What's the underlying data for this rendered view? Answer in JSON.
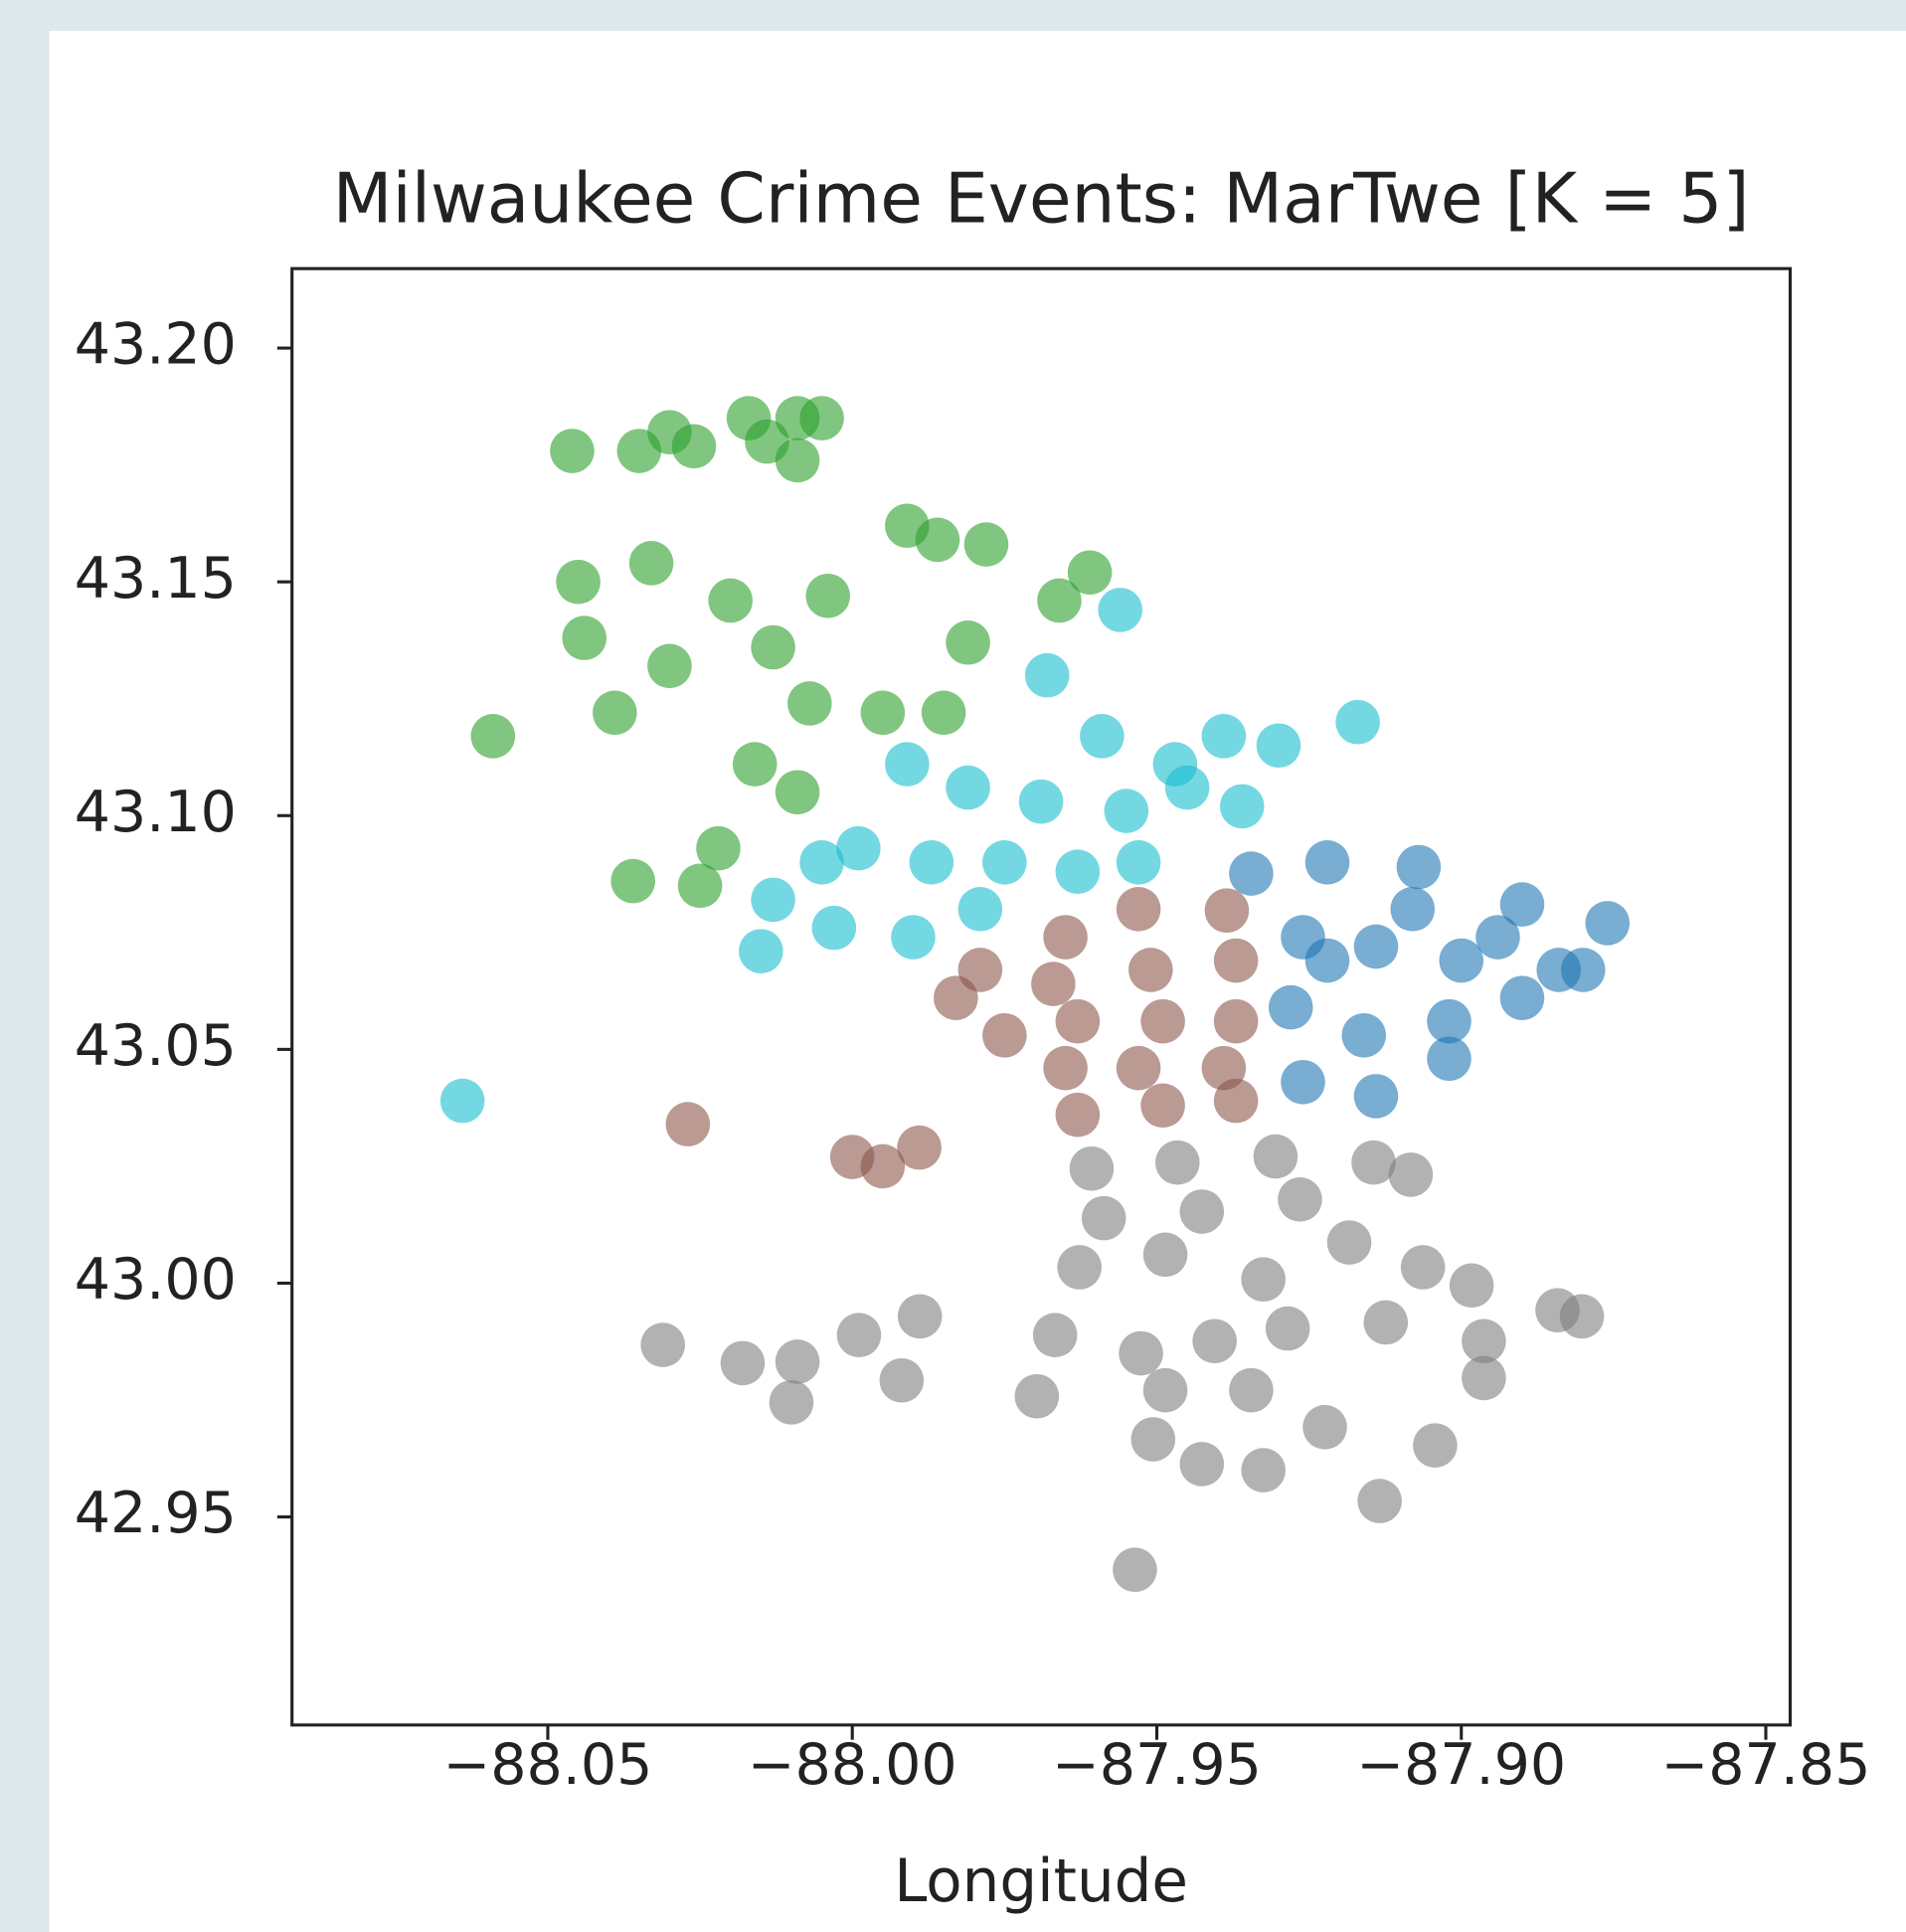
{
  "chart_data": {
    "type": "scatter",
    "title": "Milwaukee Crime Events: MarTwe [K = 5]",
    "xlabel": "Longitude",
    "xlim": [
      -88.092,
      -87.846
    ],
    "ylim": [
      42.9055,
      43.217
    ],
    "xticks": [
      {
        "value": -88.05,
        "label": "−88.05"
      },
      {
        "value": -88.0,
        "label": "−88.00"
      },
      {
        "value": -87.95,
        "label": "−87.95"
      },
      {
        "value": -87.9,
        "label": "−87.90"
      },
      {
        "value": -87.85,
        "label": "−87.85"
      }
    ],
    "yticks": [
      {
        "value": 42.95,
        "label": "42.95"
      },
      {
        "value": 43.0,
        "label": "43.00"
      },
      {
        "value": 43.05,
        "label": "43.05"
      },
      {
        "value": 43.1,
        "label": "43.10"
      },
      {
        "value": 43.15,
        "label": "43.15"
      },
      {
        "value": 43.2,
        "label": "43.20"
      }
    ],
    "series": [
      {
        "color": "#2ca02c",
        "x": [
          -88.046,
          -88.035,
          -88.03,
          -88.026,
          -88.017,
          -88.014,
          -88.009,
          -88.005,
          -88.009,
          -87.991,
          -87.986,
          -87.978,
          -88.033,
          -88.045,
          -88.02,
          -88.004,
          -88.044,
          -88.03,
          -88.013,
          -87.981,
          -87.966,
          -87.961,
          -88.059,
          -88.039,
          -88.016,
          -88.007,
          -87.995,
          -88.022,
          -88.036,
          -88.025,
          -87.985,
          -88.009
        ],
        "y": [
          43.178,
          43.178,
          43.182,
          43.179,
          43.185,
          43.18,
          43.185,
          43.185,
          43.176,
          43.162,
          43.159,
          43.158,
          43.154,
          43.15,
          43.146,
          43.147,
          43.138,
          43.132,
          43.136,
          43.137,
          43.146,
          43.152,
          43.117,
          43.122,
          43.111,
          43.124,
          43.122,
          43.093,
          43.086,
          43.085,
          43.122,
          43.105
        ]
      },
      {
        "color": "#17becf",
        "x": [
          -87.956,
          -87.968,
          -87.959,
          -87.947,
          -87.939,
          -87.93,
          -87.936,
          -87.991,
          -87.981,
          -87.969,
          -87.955,
          -87.945,
          -87.999,
          -87.987,
          -87.975,
          -87.963,
          -87.953,
          -88.005,
          -88.013,
          -88.003,
          -87.99,
          -88.015,
          -87.979,
          -88.064,
          -87.917
        ],
        "y": [
          43.144,
          43.13,
          43.117,
          43.111,
          43.117,
          43.115,
          43.102,
          43.111,
          43.106,
          43.103,
          43.101,
          43.106,
          43.093,
          43.09,
          43.09,
          43.088,
          43.09,
          43.09,
          43.082,
          43.076,
          43.074,
          43.071,
          43.08,
          43.039,
          43.12
        ]
      },
      {
        "color": "#1f77b4",
        "x": [
          -87.9345,
          -87.922,
          -87.907,
          -87.89,
          -87.876,
          -87.926,
          -87.914,
          -87.9,
          -87.884,
          -87.928,
          -87.916,
          -87.902,
          -87.89,
          -87.88,
          -87.926,
          -87.914,
          -87.902,
          -87.922,
          -87.908,
          -87.894
        ],
        "y": [
          43.0876,
          43.09,
          43.089,
          43.081,
          43.077,
          43.074,
          43.072,
          43.069,
          43.067,
          43.059,
          43.053,
          43.056,
          43.061,
          43.067,
          43.043,
          43.04,
          43.048,
          43.069,
          43.08,
          43.074
        ]
      },
      {
        "color": "#8c564b",
        "x": [
          -87.9385,
          -87.953,
          -87.965,
          -87.979,
          -87.983,
          -87.967,
          -87.951,
          -87.937,
          -87.963,
          -87.949,
          -87.937,
          -87.975,
          -87.965,
          -87.953,
          -87.939,
          -87.963,
          -87.949,
          -87.937,
          -88.027,
          -88.0,
          -87.989,
          -87.995
        ],
        "y": [
          43.0797,
          43.08,
          43.074,
          43.067,
          43.061,
          43.064,
          43.067,
          43.069,
          43.056,
          43.056,
          43.056,
          43.053,
          43.046,
          43.046,
          43.046,
          43.036,
          43.038,
          43.039,
          43.034,
          43.027,
          43.029,
          43.025
        ]
      },
      {
        "color": "#7f7f7f",
        "x": [
          -87.9607,
          -87.9466,
          -87.9305,
          -87.9144,
          -87.9083,
          -87.9587,
          -87.9426,
          -87.9265,
          -87.9627,
          -87.9486,
          -87.9325,
          -87.9184,
          -87.9063,
          -87.8983,
          -87.8842,
          -87.9285,
          -87.9124,
          -87.8963,
          -88.0311,
          -88.018,
          -88.009,
          -88.01,
          -87.9989,
          -87.9919,
          -87.9889,
          -87.9697,
          -87.9667,
          -87.9526,
          -87.9486,
          -87.9506,
          -87.9405,
          -87.9345,
          -87.9426,
          -87.9325,
          -87.9224,
          -87.9134,
          -87.9043,
          -87.8963,
          -87.9536,
          -87.8802
        ],
        "y": [
          43.0245,
          43.0258,
          43.0271,
          43.0258,
          43.0232,
          43.0139,
          43.0153,
          43.0179,
          43.0034,
          43.0061,
          43.0008,
          43.0087,
          43.0034,
          42.9995,
          42.9942,
          42.9903,
          42.9916,
          42.9876,
          42.9868,
          42.9829,
          42.9832,
          42.9745,
          42.9889,
          42.9792,
          42.9929,
          42.9758,
          42.9889,
          42.985,
          42.9771,
          42.9666,
          42.9876,
          42.9771,
          42.9613,
          42.96,
          42.9692,
          42.9534,
          42.9653,
          42.9797,
          42.9387,
          42.9929
        ]
      }
    ]
  }
}
